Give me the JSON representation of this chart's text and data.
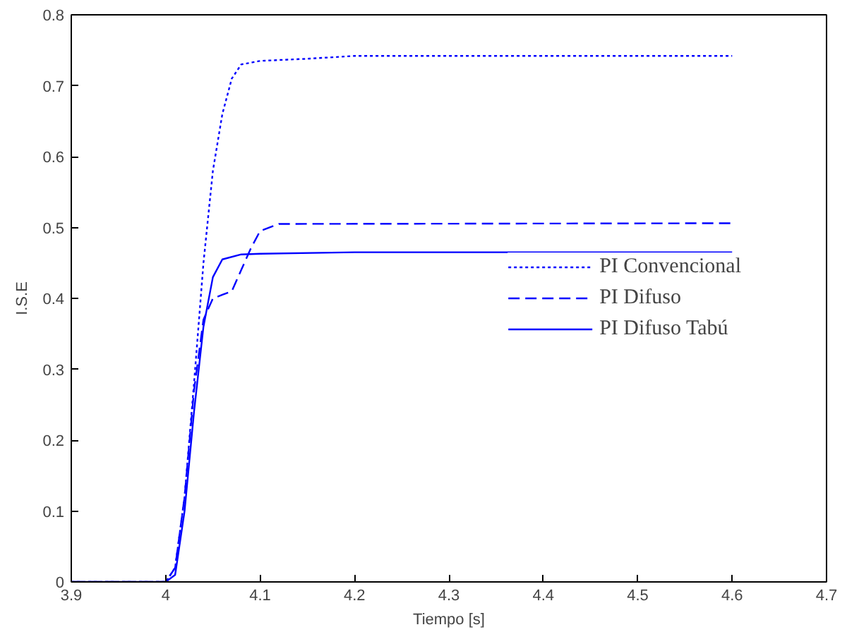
{
  "chart_data": {
    "type": "line",
    "xlabel": "Tiempo [s]",
    "ylabel": "I.S.E",
    "xlim": [
      3.9,
      4.7
    ],
    "xticks": [
      3.9,
      4,
      4.1,
      4.2,
      4.3,
      4.4,
      4.5,
      4.6,
      4.7
    ],
    "ylim": [
      0,
      0.8
    ],
    "yticks": [
      0,
      0.1,
      0.2,
      0.3,
      0.4,
      0.5,
      0.6,
      0.7,
      0.8
    ],
    "grid": false,
    "legend": "right",
    "marker": "none",
    "series": [
      {
        "name": "PI Convencional",
        "color": "#0000ff",
        "line_style": "dotted",
        "x": [
          3.9,
          4.0,
          4.01,
          4.02,
          4.03,
          4.04,
          4.05,
          4.06,
          4.07,
          4.08,
          4.1,
          4.15,
          4.2,
          4.6
        ],
        "values": [
          0,
          0,
          0.02,
          0.12,
          0.28,
          0.45,
          0.58,
          0.66,
          0.71,
          0.73,
          0.735,
          0.738,
          0.742,
          0.742
        ]
      },
      {
        "name": "PI Difuso",
        "color": "#0000ff",
        "line_style": "dashed",
        "x": [
          3.9,
          4.0,
          4.01,
          4.02,
          4.03,
          4.04,
          4.05,
          4.06,
          4.07,
          4.08,
          4.09,
          4.1,
          4.12,
          4.6
        ],
        "values": [
          0,
          0,
          0.02,
          0.12,
          0.27,
          0.37,
          0.4,
          0.405,
          0.41,
          0.44,
          0.47,
          0.495,
          0.505,
          0.506
        ]
      },
      {
        "name": "PI Difuso Tabú",
        "color": "#0000ff",
        "line_style": "solid",
        "x": [
          3.9,
          4.0,
          4.01,
          4.02,
          4.03,
          4.04,
          4.05,
          4.06,
          4.08,
          4.1,
          4.2,
          4.6
        ],
        "values": [
          0,
          0,
          0.01,
          0.1,
          0.24,
          0.36,
          0.43,
          0.455,
          0.462,
          0.463,
          0.465,
          0.465
        ]
      }
    ]
  }
}
